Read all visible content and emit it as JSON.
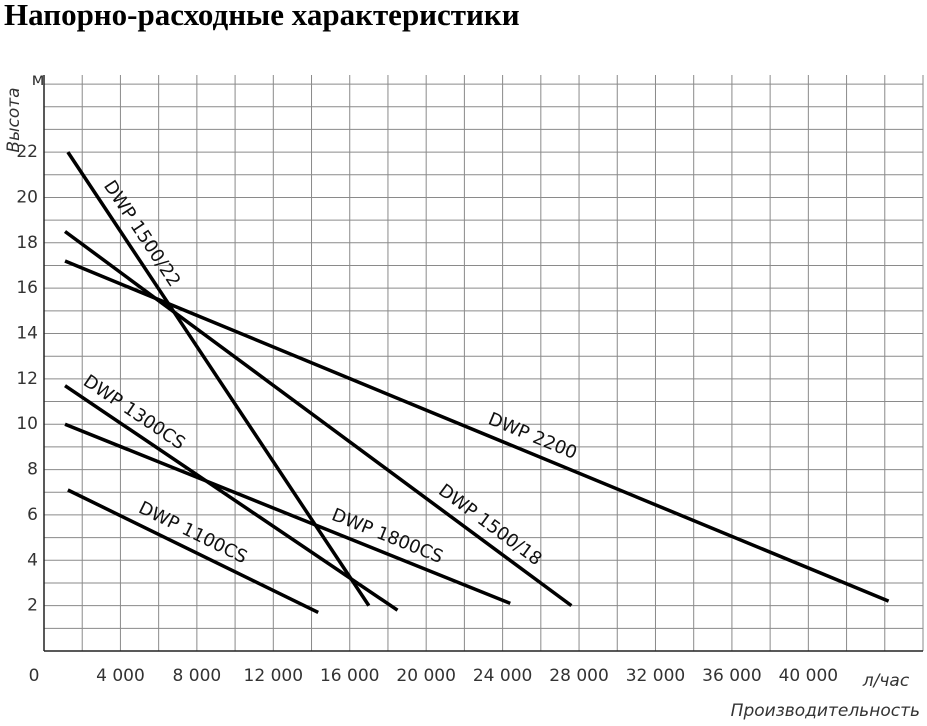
{
  "chart_data": {
    "type": "line",
    "title": "Напорно-расходные характеристики",
    "y_label": "Высота",
    "y_unit": "м",
    "x_label": "Производительность",
    "x_unit": "л/час",
    "xlim": [
      0,
      46000
    ],
    "ylim": [
      0,
      25.4
    ],
    "xticks": [
      0,
      {
        "value": 4000,
        "label": "4 000"
      },
      {
        "value": 8000,
        "label": "8 000"
      },
      {
        "value": 12000,
        "label": "12 000"
      },
      {
        "value": 16000,
        "label": "16 000"
      },
      {
        "value": 20000,
        "label": "20 000"
      },
      {
        "value": 24000,
        "label": "24 000"
      },
      {
        "value": 28000,
        "label": "28 000"
      },
      {
        "value": 32000,
        "label": "32 000"
      },
      {
        "value": 36000,
        "label": "36 000"
      },
      {
        "value": 40000,
        "label": "40 000"
      }
    ],
    "yticks": [
      2,
      4,
      6,
      8,
      10,
      12,
      14,
      16,
      18,
      20,
      22
    ],
    "grid": true,
    "series": [
      {
        "name": "DWP 1500/22",
        "color": "#000000",
        "x": [
          1250,
          17000
        ],
        "values": [
          22,
          2
        ]
      },
      {
        "name": "DWP 1500/18",
        "color": "#000000",
        "x": [
          1100,
          27600
        ],
        "values": [
          18.5,
          2
        ]
      },
      {
        "name": "DWP 2200",
        "color": "#000000",
        "x": [
          1100,
          44200
        ],
        "values": [
          17.2,
          2.2
        ]
      },
      {
        "name": "DWP 1300CS",
        "color": "#000000",
        "x": [
          1100,
          18500
        ],
        "values": [
          11.7,
          1.8
        ]
      },
      {
        "name": "DWP 1800CS",
        "color": "#000000",
        "x": [
          1100,
          24400
        ],
        "values": [
          10,
          2.1
        ]
      },
      {
        "name": "DWP 1100CS",
        "color": "#000000",
        "x": [
          1250,
          14350
        ],
        "values": [
          7.1,
          1.7
        ]
      }
    ]
  }
}
